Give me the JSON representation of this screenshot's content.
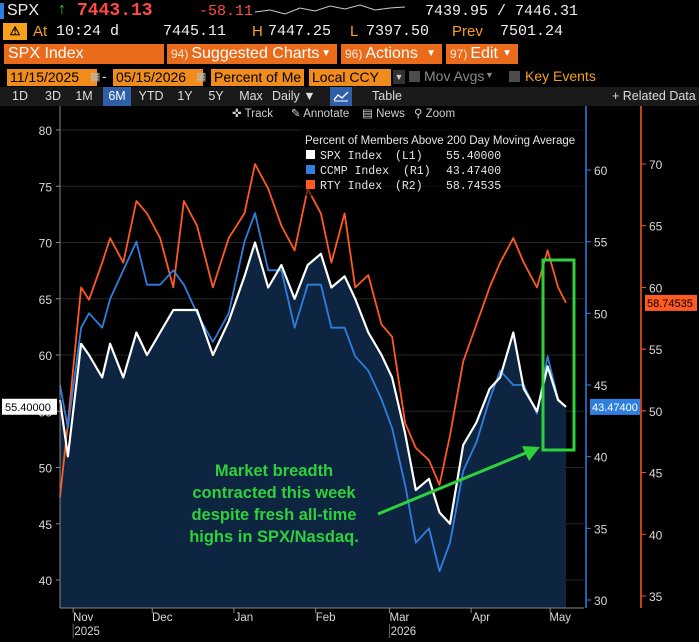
{
  "header": {
    "ticker": "SPX",
    "price": "7443.13",
    "change": "-58.11",
    "bid_ask": "7439.95 / 7446.31",
    "time_label": "At",
    "time": "10:24 d",
    "last": "7445.11",
    "high_label": "H",
    "high": "7447.25",
    "low_label": "L",
    "low": "7397.50",
    "prev_label": "Prev",
    "prev": "7501.24"
  },
  "menubar": {
    "security": "SPX Index",
    "items": [
      {
        "num": "94)",
        "label": "Suggested Charts"
      },
      {
        "num": "96)",
        "label": "Actions"
      },
      {
        "num": "97)",
        "label": "Edit"
      }
    ]
  },
  "settings": {
    "start_date": "11/15/2025",
    "end_date": "05/15/2026",
    "field": "Percent of Me",
    "currency": "Local CCY",
    "mov_avgs": "Mov Avgs",
    "key_events": "Key Events"
  },
  "tabs": {
    "periods": [
      "1D",
      "3D",
      "1M",
      "6M",
      "YTD",
      "1Y",
      "5Y",
      "Max"
    ],
    "active_period": "6M",
    "frequency": "Daily",
    "table": "Table",
    "related": "+ Related Data"
  },
  "tools": {
    "track": "Track",
    "annotate": "Annotate",
    "news": "News",
    "zoom": "Zoom"
  },
  "chart_data": {
    "type": "line",
    "title": "Percent of Members Above 200 Day Moving Average",
    "x_ticks": [
      "Nov",
      "Dec",
      "Jan",
      "Feb",
      "Mar",
      "Apr",
      "May"
    ],
    "x_years": [
      "2025",
      "2026"
    ],
    "x_dates": [
      "2025-10-27",
      "2025-10-30",
      "2025-11-04",
      "2025-11-07",
      "2025-11-12",
      "2025-11-15",
      "2025-11-20",
      "2025-11-25",
      "2025-11-29",
      "2025-12-04",
      "2025-12-09",
      "2025-12-13",
      "2025-12-18",
      "2025-12-24",
      "2025-12-30",
      "2026-01-05",
      "2026-01-09",
      "2026-01-14",
      "2026-01-19",
      "2026-01-24",
      "2026-01-29",
      "2026-02-03",
      "2026-02-07",
      "2026-02-12",
      "2026-02-16",
      "2026-02-21",
      "2026-02-26",
      "2026-03-02",
      "2026-03-07",
      "2026-03-11",
      "2026-03-16",
      "2026-03-20",
      "2026-03-24",
      "2026-03-29",
      "2026-04-03",
      "2026-04-08",
      "2026-04-12",
      "2026-04-17",
      "2026-04-21",
      "2026-04-26",
      "2026-04-30",
      "2026-05-04",
      "2026-05-07"
    ],
    "left_axis": {
      "min": 40,
      "max": 80,
      "ticks": [
        40,
        45,
        50,
        55,
        60,
        65,
        70,
        75,
        80
      ]
    },
    "r1_axis": {
      "min": 30,
      "max": 60,
      "ticks": [
        30,
        35,
        40,
        45,
        50,
        55,
        60
      ]
    },
    "r2_axis": {
      "min": 35,
      "max": 70,
      "ticks": [
        35,
        40,
        45,
        50,
        55,
        60,
        65,
        70
      ]
    },
    "series": [
      {
        "name": "SPX Index",
        "axis": "L1",
        "last": "55.40000",
        "color": "#ffffff",
        "values": [
          56,
          51,
          61,
          60,
          58,
          61,
          58,
          62,
          60,
          62,
          64,
          64,
          64,
          60,
          63,
          67,
          70,
          66,
          68,
          65,
          68,
          69,
          66,
          67,
          65,
          62,
          60,
          58,
          53,
          48,
          49,
          46,
          45,
          52,
          54,
          57,
          58,
          62,
          57,
          55,
          59,
          56,
          55.4
        ]
      },
      {
        "name": "CCMP Index",
        "axis": "R1",
        "last": "43.47400",
        "color": "#2f7fe0",
        "values": [
          45,
          42,
          49,
          50,
          49,
          51,
          53,
          55,
          52,
          52,
          53,
          52,
          50,
          48,
          50,
          55,
          57,
          53,
          53,
          49,
          52,
          52,
          49,
          49,
          47,
          46,
          44,
          42,
          38,
          34,
          35,
          32,
          34,
          39,
          41,
          44,
          46,
          45,
          45,
          43,
          47,
          44,
          43.474
        ]
      },
      {
        "name": "RTY Index",
        "axis": "R2",
        "last": "58.74535",
        "color": "#ff5a1f",
        "values": [
          43,
          49,
          60,
          59,
          62,
          64,
          62,
          67,
          66,
          64,
          60,
          67,
          65,
          60,
          64,
          66,
          70,
          68,
          65,
          63,
          68,
          66,
          62,
          66,
          60,
          61,
          57,
          56,
          49,
          47,
          46,
          44,
          48,
          54,
          57,
          60,
          62,
          64,
          62,
          60,
          63,
          60,
          58.74535
        ]
      }
    ],
    "annotation": "Market breadth contracted this week despite fresh all-time highs in SPX/Nasdaq."
  },
  "colors": {
    "amber": "#f5a11e",
    "orange_bar": "#ea6b1a",
    "highlight_green": "#2ed13b",
    "area_fill": "#0d2540"
  }
}
